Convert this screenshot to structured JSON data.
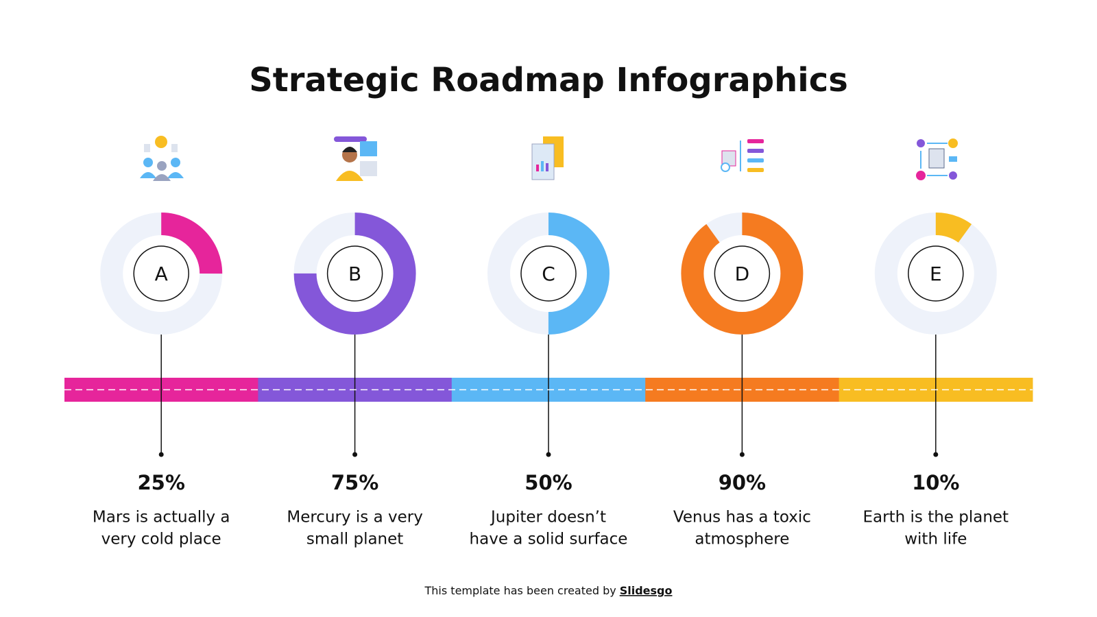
{
  "title": "Strategic Roadmap Infographics",
  "items": [
    {
      "letter": "A",
      "value": 25,
      "value_label": "25%",
      "description": [
        "Mars is actually a",
        "very cold place"
      ],
      "color": "#e6259b"
    },
    {
      "letter": "B",
      "value": 75,
      "value_label": "75%",
      "description": [
        "Mercury is a very",
        "small planet"
      ],
      "color": "#8457d9"
    },
    {
      "letter": "C",
      "value": 50,
      "value_label": "50%",
      "description": [
        "Jupiter doesn’t",
        "have a solid surface"
      ],
      "color": "#5bb7f5"
    },
    {
      "letter": "D",
      "value": 90,
      "value_label": "90%",
      "description": [
        "Venus has a toxic",
        "atmosphere"
      ],
      "color": "#f57b20"
    },
    {
      "letter": "E",
      "value": 10,
      "value_label": "10%",
      "description": [
        "Earth is the planet",
        "with life"
      ],
      "color": "#f8bd22"
    }
  ],
  "footer": {
    "text": "This template has been created by",
    "link": "Slidesgo"
  }
}
